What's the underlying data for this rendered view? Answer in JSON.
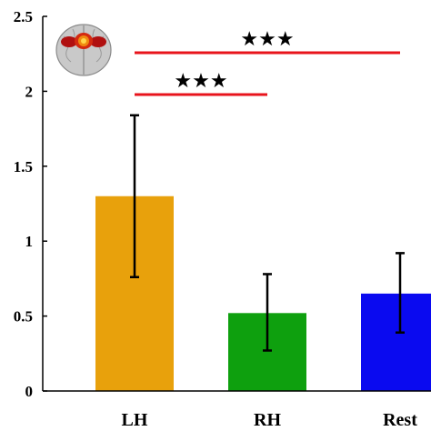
{
  "chart_data": {
    "type": "bar",
    "categories": [
      "LH",
      "RH",
      "Rest"
    ],
    "values": [
      1.3,
      0.52,
      0.65
    ],
    "error_low": [
      0.76,
      0.27,
      0.39
    ],
    "error_high": [
      1.84,
      0.78,
      0.92
    ],
    "colors": [
      "#E8A10C",
      "#0EA00E",
      "#0A0AF0"
    ],
    "ylim": [
      0,
      2.5
    ],
    "yticks": [
      "0",
      "0.5",
      "1",
      "1.5",
      "2",
      "2.5"
    ],
    "ytick_values": [
      0,
      0.5,
      1,
      1.5,
      2,
      2.5
    ],
    "grid": false,
    "significance": [
      {
        "from": "LH",
        "to": "Rest",
        "label": "★★★",
        "color": "#E8141C"
      },
      {
        "from": "LH",
        "to": "RH",
        "label": "★★★",
        "color": "#E8141C"
      }
    ],
    "inset": "brain-icon"
  }
}
